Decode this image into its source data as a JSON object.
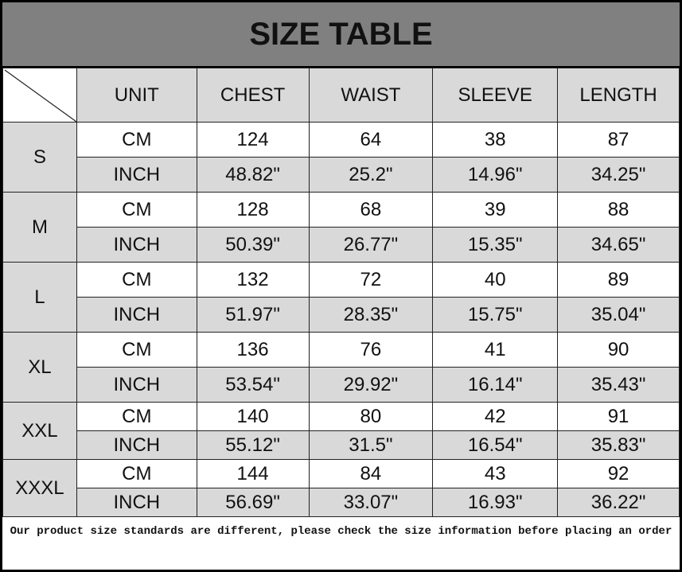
{
  "title": "SIZE TABLE",
  "headers": [
    "UNIT",
    "CHEST",
    "WAIST",
    "SLEEVE",
    "LENGTH"
  ],
  "rows": [
    {
      "size": "S",
      "cm": {
        "unit": "CM",
        "values": [
          "124",
          "64",
          "38",
          "87"
        ]
      },
      "inch": {
        "unit": "INCH",
        "values": [
          "48.82\"",
          "25.2\"",
          "14.96\"",
          "34.25\""
        ]
      }
    },
    {
      "size": "M",
      "cm": {
        "unit": "CM",
        "values": [
          "128",
          "68",
          "39",
          "88"
        ]
      },
      "inch": {
        "unit": "INCH",
        "values": [
          "50.39\"",
          "26.77\"",
          "15.35\"",
          "34.65\""
        ]
      }
    },
    {
      "size": "L",
      "cm": {
        "unit": "CM",
        "values": [
          "132",
          "72",
          "40",
          "89"
        ]
      },
      "inch": {
        "unit": "INCH",
        "values": [
          "51.97\"",
          "28.35\"",
          "15.75\"",
          "35.04\""
        ]
      }
    },
    {
      "size": "XL",
      "cm": {
        "unit": "CM",
        "values": [
          "136",
          "76",
          "41",
          "90"
        ]
      },
      "inch": {
        "unit": "INCH",
        "values": [
          "53.54\"",
          "29.92\"",
          "16.14\"",
          "35.43\""
        ]
      }
    },
    {
      "size": "XXL",
      "cm": {
        "unit": "CM",
        "values": [
          "140",
          "80",
          "42",
          "91"
        ]
      },
      "inch": {
        "unit": "INCH",
        "values": [
          "55.12\"",
          "31.5\"",
          "16.54\"",
          "35.83\""
        ]
      }
    },
    {
      "size": "XXXL",
      "cm": {
        "unit": "CM",
        "values": [
          "144",
          "84",
          "43",
          "92"
        ]
      },
      "inch": {
        "unit": "INCH",
        "values": [
          "56.69\"",
          "33.07\"",
          "16.93\"",
          "36.22\""
        ]
      }
    }
  ],
  "footer": "Our product size standards are different, please check the size information before placing an order",
  "colors": {
    "title_band": "#808080",
    "gray_cell": "#d9d9d9",
    "white_cell": "#ffffff"
  }
}
